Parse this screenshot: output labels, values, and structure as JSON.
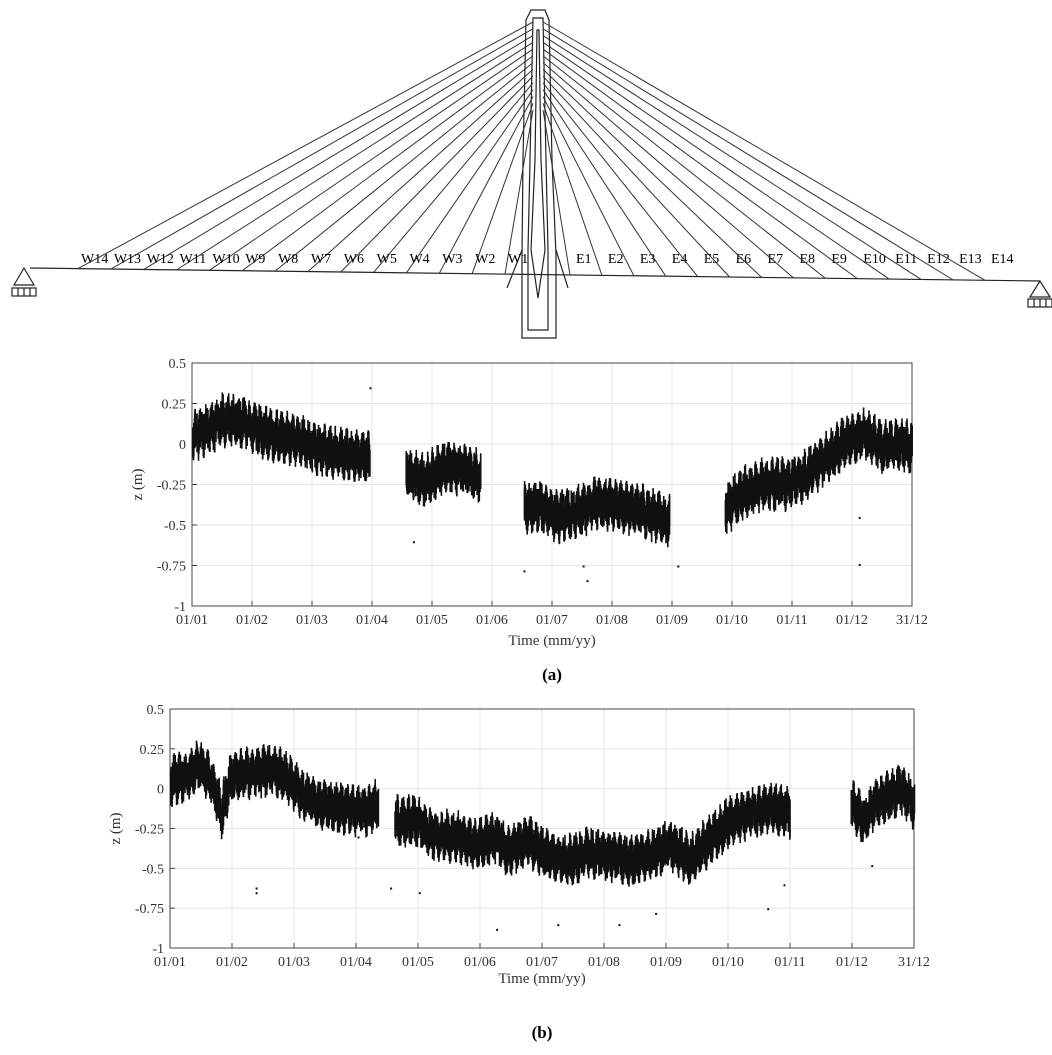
{
  "bridge": {
    "west_cables": [
      "W14",
      "W13",
      "W12",
      "W11",
      "W10",
      "W9",
      "W8",
      "W7",
      "W6",
      "W5",
      "W4",
      "W3",
      "W2",
      "W1"
    ],
    "east_cables": [
      "E1",
      "E2",
      "E3",
      "E4",
      "E5",
      "E6",
      "E7",
      "E8",
      "E9",
      "E10",
      "E11",
      "E12",
      "E13",
      "E14"
    ]
  },
  "chart_data": [
    {
      "type": "scatter",
      "panel_label": "(a)",
      "xlabel": "Time (mm/yy)",
      "ylabel": "z (m)",
      "ylim": [
        -1,
        0.5
      ],
      "y_ticks": [
        "-1",
        "-0.75",
        "-0.5",
        "-0.25",
        "0",
        "0.25",
        "0.5"
      ],
      "x_ticks": [
        "01/01",
        "01/02",
        "01/03",
        "01/04",
        "01/05",
        "01/06",
        "01/07",
        "01/08",
        "01/09",
        "01/10",
        "01/11",
        "01/12",
        "31/12"
      ],
      "grid": true,
      "marker_color": "#111111",
      "trend": [
        [
          0,
          0.05
        ],
        [
          8,
          0.1
        ],
        [
          15,
          0.15
        ],
        [
          25,
          0.14
        ],
        [
          35,
          0.08
        ],
        [
          45,
          0.04
        ],
        [
          55,
          0.02
        ],
        [
          65,
          -0.04
        ],
        [
          75,
          -0.06
        ],
        [
          83,
          -0.08
        ],
        [
          90,
          -0.08
        ],
        null,
        [
          108,
          -0.18
        ],
        [
          118,
          -0.22
        ],
        [
          128,
          -0.14
        ],
        [
          138,
          -0.16
        ],
        [
          146,
          -0.2
        ],
        null,
        [
          168,
          -0.4
        ],
        [
          175,
          -0.38
        ],
        [
          185,
          -0.45
        ],
        [
          195,
          -0.42
        ],
        [
          205,
          -0.36
        ],
        [
          215,
          -0.38
        ],
        [
          225,
          -0.4
        ],
        [
          235,
          -0.45
        ],
        [
          242,
          -0.48
        ],
        null,
        [
          270,
          -0.4
        ],
        [
          280,
          -0.3
        ],
        [
          290,
          -0.25
        ],
        [
          300,
          -0.25
        ],
        [
          310,
          -0.2
        ],
        [
          320,
          -0.1
        ],
        [
          330,
          0.0
        ],
        [
          340,
          0.06
        ],
        [
          350,
          -0.02
        ],
        [
          358,
          0.0
        ],
        [
          365,
          -0.02
        ]
      ],
      "spread": 0.17,
      "outliers": [
        [
          90,
          0.35
        ],
        [
          112,
          -0.6
        ],
        [
          168,
          -0.78
        ],
        [
          198,
          -0.75
        ],
        [
          200,
          -0.84
        ],
        [
          246,
          -0.75
        ],
        [
          338,
          -0.74
        ],
        [
          338,
          -0.45
        ]
      ]
    },
    {
      "type": "scatter",
      "panel_label": "(b)",
      "xlabel": "Time (mm/yy)",
      "ylabel": "z (m)",
      "ylim": [
        -1,
        0.5
      ],
      "y_ticks": [
        "-1",
        "-0.75",
        "-0.5",
        "-0.25",
        "0",
        "0.25",
        "0.5"
      ],
      "x_ticks": [
        "01/01",
        "01/02",
        "01/03",
        "01/04",
        "01/05",
        "01/06",
        "01/07",
        "01/08",
        "01/09",
        "01/10",
        "01/11",
        "01/12",
        "31/12"
      ],
      "grid": true,
      "marker_color": "#111111",
      "trend": [
        [
          0,
          0.05
        ],
        [
          8,
          0.08
        ],
        [
          14,
          0.15
        ],
        [
          20,
          0.05
        ],
        [
          25,
          -0.15
        ],
        [
          30,
          0.08
        ],
        [
          40,
          0.1
        ],
        [
          50,
          0.12
        ],
        [
          58,
          0.06
        ],
        [
          65,
          -0.05
        ],
        [
          75,
          -0.1
        ],
        [
          85,
          -0.12
        ],
        [
          95,
          -0.14
        ],
        [
          102,
          -0.1
        ],
        null,
        [
          110,
          -0.2
        ],
        [
          120,
          -0.2
        ],
        [
          130,
          -0.3
        ],
        [
          140,
          -0.3
        ],
        [
          150,
          -0.35
        ],
        [
          160,
          -0.3
        ],
        [
          165,
          -0.4
        ],
        [
          175,
          -0.32
        ],
        [
          185,
          -0.42
        ],
        [
          195,
          -0.45
        ],
        [
          205,
          -0.4
        ],
        [
          215,
          -0.42
        ],
        [
          225,
          -0.45
        ],
        [
          235,
          -0.42
        ],
        [
          245,
          -0.35
        ],
        [
          255,
          -0.45
        ],
        [
          265,
          -0.32
        ],
        [
          275,
          -0.2
        ],
        [
          285,
          -0.15
        ],
        [
          295,
          -0.12
        ],
        [
          304,
          -0.15
        ],
        null,
        [
          334,
          -0.1
        ],
        [
          340,
          -0.2
        ],
        [
          345,
          -0.1
        ],
        [
          352,
          -0.05
        ],
        [
          358,
          0.0
        ],
        [
          365,
          -0.1
        ]
      ],
      "spread": 0.17,
      "outliers": [
        [
          42,
          -0.62
        ],
        [
          42,
          -0.65
        ],
        [
          92,
          -0.3
        ],
        [
          108,
          -0.62
        ],
        [
          122,
          -0.65
        ],
        [
          160,
          -0.88
        ],
        [
          190,
          -0.85
        ],
        [
          220,
          -0.85
        ],
        [
          238,
          -0.78
        ],
        [
          293,
          -0.75
        ],
        [
          301,
          -0.6
        ],
        [
          344,
          -0.48
        ]
      ]
    }
  ]
}
